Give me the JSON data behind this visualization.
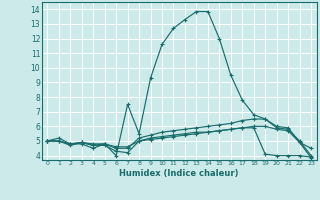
{
  "xlabel": "Humidex (Indice chaleur)",
  "bg_color": "#cceaea",
  "grid_color": "#ffffff",
  "line_color": "#1a6b6b",
  "xlim": [
    -0.5,
    23.5
  ],
  "ylim": [
    3.7,
    14.5
  ],
  "yticks": [
    4,
    5,
    6,
    7,
    8,
    9,
    10,
    11,
    12,
    13,
    14
  ],
  "xticks": [
    0,
    1,
    2,
    3,
    4,
    5,
    6,
    7,
    8,
    9,
    10,
    11,
    12,
    13,
    14,
    15,
    16,
    17,
    18,
    19,
    20,
    21,
    22,
    23
  ],
  "lines": [
    {
      "x": [
        0,
        1,
        2,
        3,
        4,
        5,
        6,
        7,
        8,
        9,
        10,
        11,
        12,
        13,
        14,
        15,
        16,
        17,
        18,
        19,
        20,
        21,
        22,
        23
      ],
      "y": [
        5.0,
        5.2,
        4.8,
        4.8,
        4.5,
        4.8,
        4.0,
        7.5,
        5.5,
        9.3,
        11.6,
        12.7,
        13.3,
        13.85,
        13.85,
        12.0,
        9.5,
        7.8,
        6.8,
        6.5,
        6.0,
        5.9,
        4.9,
        3.85
      ]
    },
    {
      "x": [
        0,
        1,
        2,
        3,
        4,
        5,
        6,
        7,
        8,
        9,
        10,
        11,
        12,
        13,
        14,
        15,
        16,
        17,
        18,
        19,
        20,
        21,
        22,
        23
      ],
      "y": [
        5.0,
        5.0,
        4.8,
        4.9,
        4.7,
        4.8,
        4.5,
        4.5,
        5.2,
        5.4,
        5.6,
        5.7,
        5.8,
        5.9,
        6.0,
        6.1,
        6.2,
        6.4,
        6.5,
        6.5,
        5.9,
        5.8,
        5.0,
        4.0
      ]
    },
    {
      "x": [
        0,
        1,
        2,
        3,
        4,
        5,
        6,
        7,
        8,
        9,
        10,
        11,
        12,
        13,
        14,
        15,
        16,
        17,
        18,
        19,
        20,
        21,
        22,
        23
      ],
      "y": [
        5.0,
        5.0,
        4.7,
        4.9,
        4.7,
        4.7,
        4.3,
        4.2,
        5.0,
        5.1,
        5.2,
        5.3,
        5.4,
        5.5,
        5.6,
        5.7,
        5.8,
        5.9,
        5.9,
        4.1,
        4.0,
        4.0,
        4.0,
        3.9
      ]
    },
    {
      "x": [
        0,
        1,
        2,
        3,
        4,
        5,
        6,
        7,
        8,
        9,
        10,
        11,
        12,
        13,
        14,
        15,
        16,
        17,
        18,
        19,
        20,
        21,
        22,
        23
      ],
      "y": [
        5.0,
        5.0,
        4.8,
        4.9,
        4.8,
        4.8,
        4.6,
        4.6,
        5.0,
        5.2,
        5.3,
        5.4,
        5.5,
        5.6,
        5.6,
        5.7,
        5.8,
        5.9,
        6.0,
        6.0,
        5.8,
        5.7,
        4.9,
        4.5
      ]
    }
  ]
}
